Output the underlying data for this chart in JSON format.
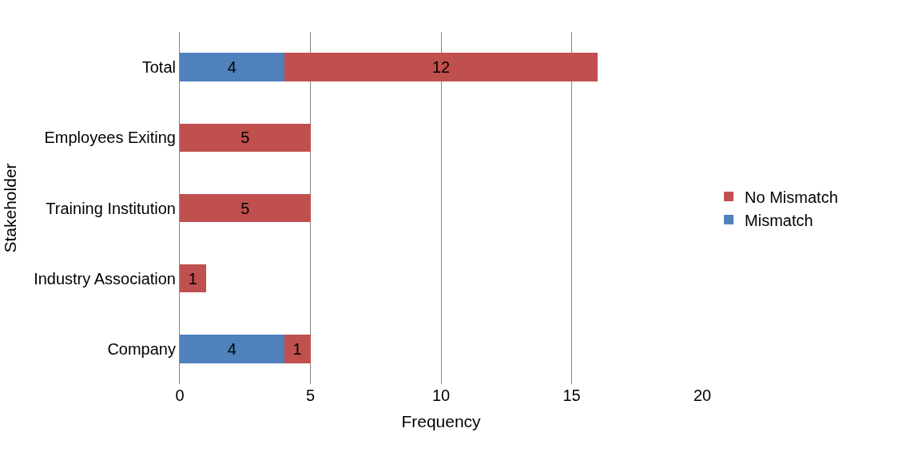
{
  "chart_data": {
    "type": "bar",
    "orientation": "horizontal",
    "stacked": true,
    "xlabel": "Frequency",
    "ylabel": "Stakeholder",
    "categories": [
      "Total",
      "Employees Exiting",
      "Training Institution",
      "Industry Association",
      "Company"
    ],
    "series": [
      {
        "name": "Mismatch",
        "color": "#4f81bd",
        "values": [
          4,
          null,
          null,
          null,
          4
        ]
      },
      {
        "name": "No Mismatch",
        "color": "#c0504d",
        "values": [
          12,
          5,
          5,
          1,
          1
        ]
      }
    ],
    "xlim": [
      0,
      20
    ],
    "xticks": [
      0,
      5,
      10,
      15,
      20
    ],
    "grid": "x",
    "legend": "right",
    "data_labels": true
  }
}
